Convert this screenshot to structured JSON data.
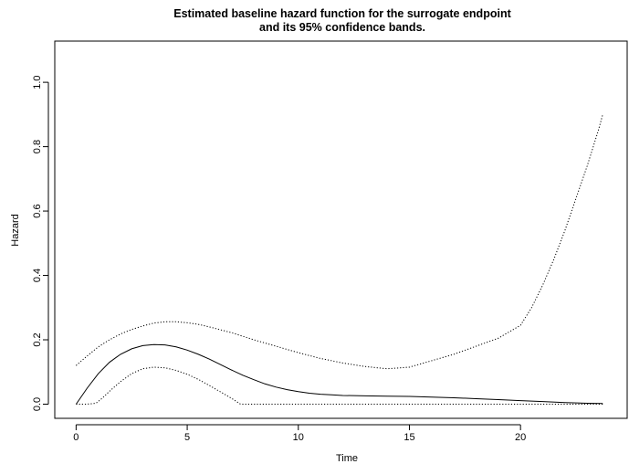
{
  "chart_data": {
    "type": "line",
    "title": "Estimated baseline hazard function for the surrogate endpoint",
    "subtitle": "and its 95% confidence bands.",
    "xlabel": "Time",
    "ylabel": "Hazard",
    "xlim": [
      -0.96,
      24.8
    ],
    "ylim": [
      -0.044,
      1.128
    ],
    "x_ticks": [
      0,
      5,
      10,
      15,
      20
    ],
    "x_tick_labels": [
      "0",
      "5",
      "10",
      "15",
      "20"
    ],
    "y_ticks": [
      0.0,
      0.2,
      0.4,
      0.6,
      0.8,
      1.0
    ],
    "y_tick_labels": [
      "0.0",
      "0.2",
      "0.4",
      "0.6",
      "0.8",
      "1.0"
    ],
    "grid": false,
    "legend": "none",
    "series": [
      {
        "style": "solid",
        "x": [
          0,
          0.5,
          1,
          1.5,
          2,
          2.5,
          3,
          3.5,
          4,
          4.5,
          5,
          5.5,
          6,
          6.5,
          7,
          7.5,
          8,
          8.5,
          9,
          9.5,
          10,
          10.5,
          11,
          11.5,
          12,
          13,
          14,
          15,
          16,
          17,
          18,
          19,
          20,
          21,
          22,
          23,
          23.7
        ],
        "y": [
          0.0,
          0.05,
          0.095,
          0.13,
          0.155,
          0.172,
          0.182,
          0.185,
          0.184,
          0.178,
          0.168,
          0.155,
          0.14,
          0.123,
          0.106,
          0.09,
          0.076,
          0.063,
          0.053,
          0.045,
          0.039,
          0.034,
          0.031,
          0.029,
          0.027,
          0.026,
          0.025,
          0.024,
          0.022,
          0.02,
          0.017,
          0.014,
          0.011,
          0.008,
          0.005,
          0.003,
          0.002
        ]
      },
      {
        "style": "dotted",
        "x": [
          0,
          0.5,
          1,
          1.5,
          2,
          2.5,
          3,
          3.5,
          4,
          4.5,
          5,
          5.5,
          6,
          7,
          8,
          9,
          10,
          11,
          12,
          13,
          14,
          15,
          16,
          17,
          18,
          19,
          20,
          20.5,
          21,
          21.5,
          22,
          22.5,
          23,
          23.5,
          23.7
        ],
        "y": [
          0.12,
          0.15,
          0.178,
          0.2,
          0.218,
          0.232,
          0.243,
          0.252,
          0.256,
          0.256,
          0.253,
          0.248,
          0.24,
          0.222,
          0.2,
          0.18,
          0.16,
          0.142,
          0.128,
          0.117,
          0.11,
          0.115,
          0.135,
          0.155,
          0.18,
          0.205,
          0.245,
          0.3,
          0.37,
          0.45,
          0.54,
          0.64,
          0.74,
          0.85,
          0.9
        ]
      },
      {
        "style": "dotted",
        "x": [
          0,
          0.5,
          0.9,
          1.2,
          1.5,
          2,
          2.5,
          3,
          3.5,
          4,
          4.5,
          5,
          5.5,
          6,
          6.5,
          7,
          7.4,
          8,
          10,
          15,
          20,
          23.7
        ],
        "y": [
          0.0,
          0.0,
          0.003,
          0.02,
          0.04,
          0.07,
          0.095,
          0.11,
          0.115,
          0.113,
          0.105,
          0.093,
          0.077,
          0.058,
          0.038,
          0.018,
          0.0,
          0.0,
          0.0,
          0.0,
          0.0,
          0.0
        ]
      }
    ]
  }
}
